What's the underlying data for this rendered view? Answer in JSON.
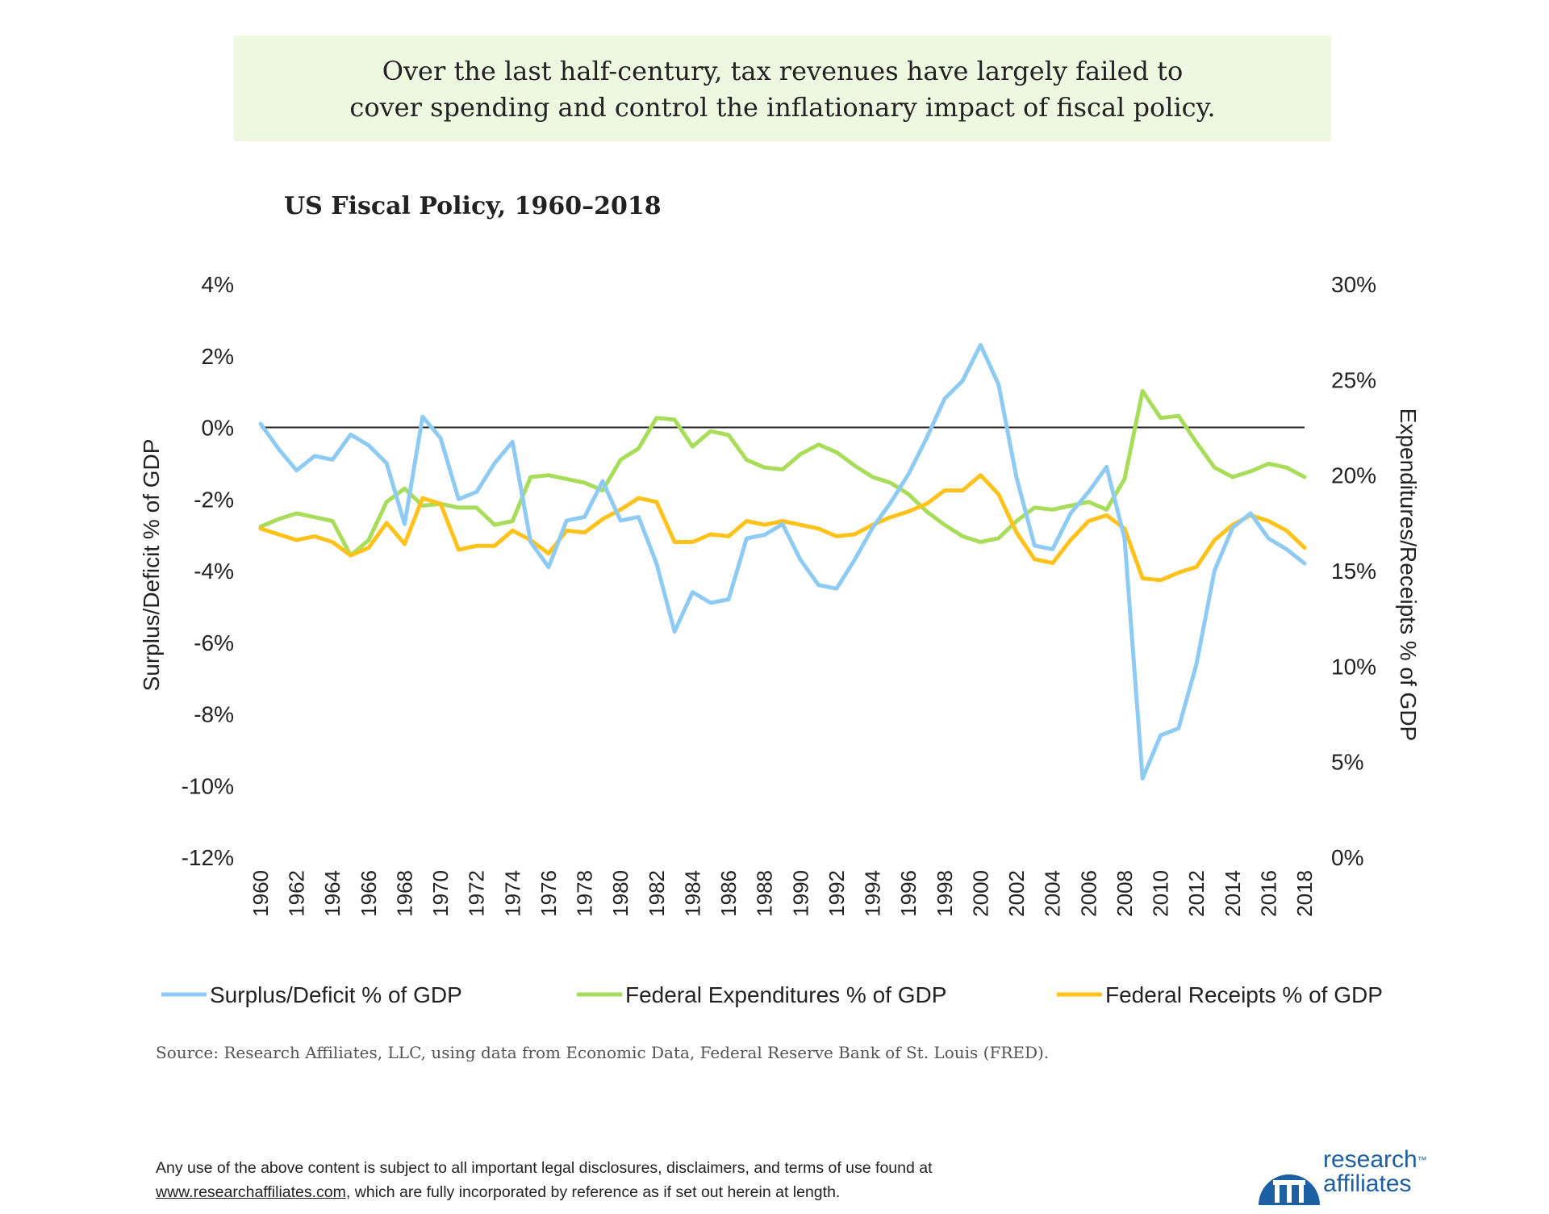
{
  "banner": {
    "line1": "Over the last half-century, tax revenues have largely failed to",
    "line2": "cover spending and control the inflationary impact of fiscal policy."
  },
  "source_text": "Source: Research Affiliates, LLC, using data from Economic Data, Federal Reserve Bank of St. Louis (FRED).",
  "disclaimer": {
    "line1": "Any use of the above content is subject to all important legal disclosures, disclaimers, and terms of use found at",
    "link": "www.researchaffiliates.com",
    "line2_rest": ", which are fully incorporated by reference as if set out herein at length."
  },
  "logo": {
    "word1": "research",
    "tm": "™",
    "word2": "affiliates"
  },
  "colors": {
    "surplus": "#8ecbf4",
    "expenditures": "#a8dd5a",
    "receipts": "#ffc21a",
    "banner_bg": "#eef7e0",
    "logo_blue": "#1d5fa3"
  },
  "chart_data": {
    "type": "line",
    "title": "US Fiscal Policy, 1960–2018",
    "ylabel_left": "Surplus/Deficit % of GDP",
    "ylabel_right": "Expenditures/Receipts % of GDP",
    "ylim_left": [
      -12,
      4
    ],
    "ylim_right": [
      0,
      30
    ],
    "yticks_left": [
      "4%",
      "2%",
      "0%",
      "-2%",
      "-4%",
      "-6%",
      "-8%",
      "-10%",
      "-12%"
    ],
    "yticks_right": [
      "30%",
      "25%",
      "20%",
      "15%",
      "10%",
      "5%",
      "0%"
    ],
    "xticks": [
      "1960",
      "1962",
      "1964",
      "1966",
      "1968",
      "1970",
      "1972",
      "1974",
      "1976",
      "1978",
      "1980",
      "1982",
      "1984",
      "1986",
      "1988",
      "1990",
      "1992",
      "1994",
      "1996",
      "1998",
      "2000",
      "2002",
      "2004",
      "2006",
      "2008",
      "2010",
      "2012",
      "2014",
      "2016",
      "2018"
    ],
    "legend_position": "bottom",
    "x": [
      1960,
      1961,
      1962,
      1963,
      1964,
      1965,
      1966,
      1967,
      1968,
      1969,
      1970,
      1971,
      1972,
      1973,
      1974,
      1975,
      1976,
      1977,
      1978,
      1979,
      1980,
      1981,
      1982,
      1983,
      1984,
      1985,
      1986,
      1987,
      1988,
      1989,
      1990,
      1991,
      1992,
      1993,
      1994,
      1995,
      1996,
      1997,
      1998,
      1999,
      2000,
      2001,
      2002,
      2003,
      2004,
      2005,
      2006,
      2007,
      2008,
      2009,
      2010,
      2011,
      2012,
      2013,
      2014,
      2015,
      2016,
      2017,
      2018
    ],
    "series": [
      {
        "name": "Surplus/Deficit % of GDP",
        "axis": "left",
        "values": [
          0.1,
          -0.6,
          -1.2,
          -0.8,
          -0.9,
          -0.2,
          -0.5,
          -1.0,
          -2.7,
          0.3,
          -0.3,
          -2.0,
          -1.8,
          -1.0,
          -0.4,
          -3.2,
          -3.9,
          -2.6,
          -2.5,
          -1.5,
          -2.6,
          -2.5,
          -3.8,
          -5.7,
          -4.6,
          -4.9,
          -4.8,
          -3.1,
          -3.0,
          -2.7,
          -3.7,
          -4.4,
          -4.5,
          -3.7,
          -2.8,
          -2.1,
          -1.3,
          -0.3,
          0.8,
          1.3,
          2.3,
          1.2,
          -1.4,
          -3.3,
          -3.4,
          -2.4,
          -1.8,
          -1.1,
          -3.1,
          -9.8,
          -8.6,
          -8.4,
          -6.6,
          -4.0,
          -2.8,
          -2.4,
          -3.1,
          -3.4,
          -3.8
        ]
      },
      {
        "name": "Federal Expenditures % of GDP",
        "axis": "right",
        "values": [
          17.3,
          17.7,
          18.0,
          17.8,
          17.6,
          15.8,
          16.6,
          18.6,
          19.3,
          18.4,
          18.5,
          18.3,
          18.3,
          17.4,
          17.6,
          19.9,
          20.0,
          19.8,
          19.6,
          19.2,
          20.8,
          21.4,
          23.0,
          22.9,
          21.5,
          22.3,
          22.1,
          20.8,
          20.4,
          20.3,
          21.1,
          21.6,
          21.2,
          20.5,
          19.9,
          19.6,
          19.0,
          18.1,
          17.4,
          16.8,
          16.5,
          16.7,
          17.6,
          18.3,
          18.2,
          18.4,
          18.6,
          18.2,
          19.8,
          24.4,
          23.0,
          23.1,
          21.7,
          20.4,
          19.9,
          20.2,
          20.6,
          20.4,
          19.9
        ]
      },
      {
        "name": "Federal Receipts % of GDP",
        "axis": "right",
        "values": [
          17.2,
          16.9,
          16.6,
          16.8,
          16.5,
          15.8,
          16.2,
          17.5,
          16.4,
          18.8,
          18.5,
          16.1,
          16.3,
          16.3,
          17.1,
          16.6,
          15.9,
          17.1,
          17.0,
          17.7,
          18.2,
          18.8,
          18.6,
          16.5,
          16.5,
          16.9,
          16.8,
          17.6,
          17.4,
          17.6,
          17.4,
          17.2,
          16.8,
          16.9,
          17.4,
          17.8,
          18.1,
          18.5,
          19.2,
          19.2,
          20.0,
          19.0,
          17.0,
          15.6,
          15.4,
          16.6,
          17.6,
          17.9,
          17.2,
          14.6,
          14.5,
          14.9,
          15.2,
          16.6,
          17.4,
          17.9,
          17.6,
          17.1,
          16.2
        ]
      }
    ]
  }
}
